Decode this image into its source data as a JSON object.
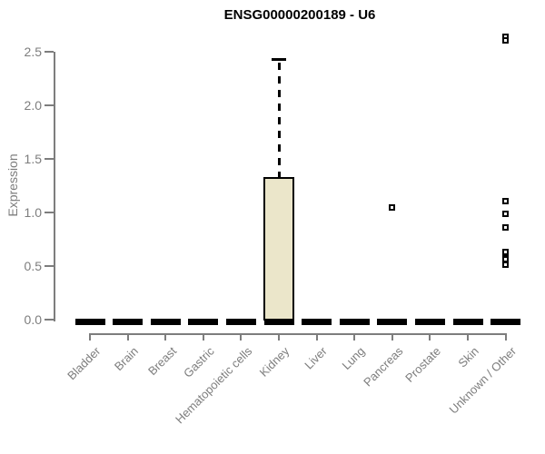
{
  "chart_data": {
    "type": "boxplot",
    "title": "ENSG00000200189 - U6",
    "ylabel": "Expression",
    "ylim": [
      0,
      2.5
    ],
    "yticks": [
      0.0,
      0.5,
      1.0,
      1.5,
      2.0,
      2.5
    ],
    "ytick_labels": [
      "0.0",
      "0.5",
      "1.0",
      "1.5",
      "2.0",
      "2.5"
    ],
    "grid": false,
    "legend": false,
    "categories": [
      "Bladder",
      "Brain",
      "Breast",
      "Gastric",
      "Hematopoietic cells",
      "Kidney",
      "Liver",
      "Lung",
      "Pancreas",
      "Prostate",
      "Skin",
      "Unknown / Other"
    ],
    "boxes": [
      {
        "category": "Bladder",
        "min": 0,
        "q1": 0,
        "median": 0,
        "q3": 0,
        "max": 0,
        "outliers": []
      },
      {
        "category": "Brain",
        "min": 0,
        "q1": 0,
        "median": 0,
        "q3": 0,
        "max": 0,
        "outliers": []
      },
      {
        "category": "Breast",
        "min": 0,
        "q1": 0,
        "median": 0,
        "q3": 0,
        "max": 0,
        "outliers": []
      },
      {
        "category": "Gastric",
        "min": 0,
        "q1": 0,
        "median": 0,
        "q3": 0,
        "max": 0,
        "outliers": []
      },
      {
        "category": "Hematopoietic cells",
        "min": 0,
        "q1": 0,
        "median": 0,
        "q3": 0,
        "max": 0,
        "outliers": []
      },
      {
        "category": "Kidney",
        "min": 0,
        "q1": 0,
        "median": 0,
        "q3": 1.33,
        "max": 2.42,
        "outliers": []
      },
      {
        "category": "Liver",
        "min": 0,
        "q1": 0,
        "median": 0,
        "q3": 0,
        "max": 0,
        "outliers": []
      },
      {
        "category": "Lung",
        "min": 0,
        "q1": 0,
        "median": 0,
        "q3": 0,
        "max": 0,
        "outliers": []
      },
      {
        "category": "Pancreas",
        "min": 0,
        "q1": 0,
        "median": 0,
        "q3": 0,
        "max": 0,
        "outliers": [
          1.05
        ]
      },
      {
        "category": "Prostate",
        "min": 0,
        "q1": 0,
        "median": 0,
        "q3": 0,
        "max": 0,
        "outliers": []
      },
      {
        "category": "Skin",
        "min": 0,
        "q1": 0,
        "median": 0,
        "q3": 0,
        "max": 0,
        "outliers": []
      },
      {
        "category": "Unknown / Other",
        "min": 0,
        "q1": 0,
        "median": 0,
        "q3": 0,
        "max": 0,
        "outliers": [
          2.64,
          2.61,
          1.11,
          0.99,
          0.86,
          0.63,
          0.58,
          0.56,
          0.51
        ]
      }
    ],
    "colors": {
      "box_fill": "#ebe6ca",
      "box_border": "#000000",
      "zero_bar": "#000000",
      "axis": "#7d7d7d",
      "text": "#7d7d7d",
      "title_color": "#000000",
      "background": "#ffffff"
    }
  }
}
